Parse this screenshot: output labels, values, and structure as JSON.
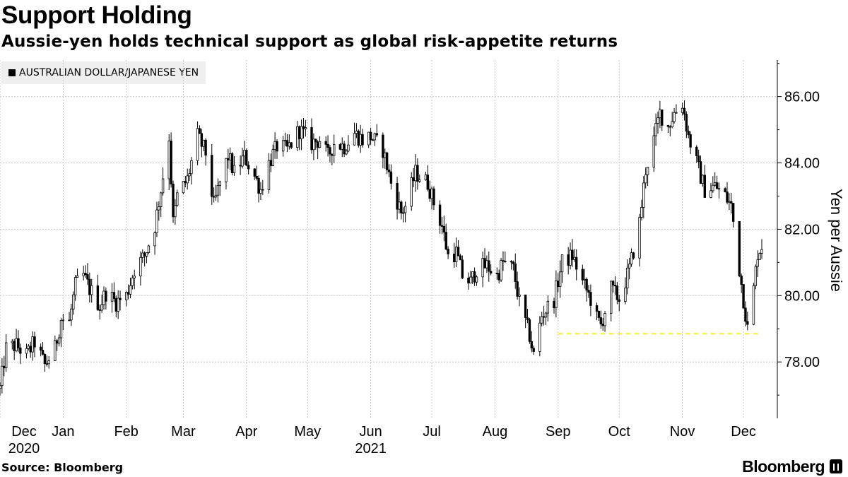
{
  "header": {
    "title": "Support Holding",
    "subtitle": "Aussie-yen holds technical support as global risk-appetite returns"
  },
  "legend": {
    "label": "AUSTRALIAN DOLLAR/JAPANESE YEN",
    "color": "#000000"
  },
  "footer": {
    "source": "Source: Bloomberg",
    "brand": "Bloomberg"
  },
  "chart_data": {
    "type": "candlestick",
    "ylabel": "Yen per Aussie",
    "ylim": [
      76.3,
      87.1
    ],
    "yticks": [
      78,
      80,
      82,
      84,
      86
    ],
    "ytick_labels": [
      "78.00",
      "80.00",
      "82.00",
      "84.00",
      "86.00"
    ],
    "x_range": [
      "2020-12-01",
      "2021-12-10"
    ],
    "x_ticks": [
      {
        "date": "2020-12-01",
        "label": "Dec",
        "year": "2020"
      },
      {
        "date": "2021-01-01",
        "label": "Jan"
      },
      {
        "date": "2021-02-01",
        "label": "Feb"
      },
      {
        "date": "2021-03-01",
        "label": "Mar"
      },
      {
        "date": "2021-04-01",
        "label": "Apr"
      },
      {
        "date": "2021-05-01",
        "label": "May"
      },
      {
        "date": "2021-06-01",
        "label": "Jun",
        "year": "2021"
      },
      {
        "date": "2021-07-01",
        "label": "Jul"
      },
      {
        "date": "2021-08-01",
        "label": "Aug"
      },
      {
        "date": "2021-09-01",
        "label": "Sep"
      },
      {
        "date": "2021-10-01",
        "label": "Oct"
      },
      {
        "date": "2021-11-01",
        "label": "Nov"
      },
      {
        "date": "2021-12-01",
        "label": "Dec"
      }
    ],
    "support_line": {
      "value": 78.85,
      "from": "2021-09-01",
      "to": "2021-12-10",
      "color": "#f2ef3a"
    },
    "grid": true,
    "series": [
      {
        "name": "AUSTRALIAN DOLLAR/JAPANESE YEN",
        "color": "#000000",
        "close_points": [
          [
            "2020-12-01",
            77.2
          ],
          [
            "2020-12-04",
            78.4
          ],
          [
            "2020-12-09",
            78.5
          ],
          [
            "2020-12-14",
            78.2
          ],
          [
            "2020-12-18",
            78.6
          ],
          [
            "2020-12-23",
            77.9
          ],
          [
            "2020-12-28",
            78.4
          ],
          [
            "2020-12-31",
            79.3
          ],
          [
            "2021-01-04",
            79.2
          ],
          [
            "2021-01-07",
            80.3
          ],
          [
            "2021-01-11",
            80.6
          ],
          [
            "2021-01-14",
            80.2
          ],
          [
            "2021-01-19",
            79.7
          ],
          [
            "2021-01-22",
            80.1
          ],
          [
            "2021-01-27",
            79.8
          ],
          [
            "2021-02-01",
            80.0
          ],
          [
            "2021-02-05",
            80.8
          ],
          [
            "2021-02-10",
            81.2
          ],
          [
            "2021-02-15",
            82.1
          ],
          [
            "2021-02-18",
            83.2
          ],
          [
            "2021-02-22",
            84.8
          ],
          [
            "2021-02-24",
            82.2
          ],
          [
            "2021-02-26",
            83.0
          ],
          [
            "2021-03-03",
            83.5
          ],
          [
            "2021-03-08",
            84.8
          ],
          [
            "2021-03-12",
            84.3
          ],
          [
            "2021-03-16",
            82.7
          ],
          [
            "2021-03-19",
            83.4
          ],
          [
            "2021-03-23",
            84.2
          ],
          [
            "2021-03-26",
            83.7
          ],
          [
            "2021-03-31",
            84.2
          ],
          [
            "2021-04-05",
            83.6
          ],
          [
            "2021-04-08",
            83.2
          ],
          [
            "2021-04-12",
            84.0
          ],
          [
            "2021-04-16",
            84.5
          ],
          [
            "2021-04-21",
            84.4
          ],
          [
            "2021-04-27",
            85.0
          ],
          [
            "2021-05-03",
            84.6
          ],
          [
            "2021-05-07",
            84.7
          ],
          [
            "2021-05-11",
            84.2
          ],
          [
            "2021-05-14",
            84.6
          ],
          [
            "2021-05-19",
            84.5
          ],
          [
            "2021-05-24",
            84.9
          ],
          [
            "2021-05-28",
            84.7
          ],
          [
            "2021-06-01",
            84.8
          ],
          [
            "2021-06-07",
            84.4
          ],
          [
            "2021-06-11",
            83.4
          ],
          [
            "2021-06-16",
            82.5
          ],
          [
            "2021-06-18",
            82.7
          ],
          [
            "2021-06-23",
            83.7
          ],
          [
            "2021-06-29",
            83.4
          ],
          [
            "2021-07-02",
            82.8
          ],
          [
            "2021-07-06",
            82.1
          ],
          [
            "2021-07-09",
            81.2
          ],
          [
            "2021-07-13",
            81.3
          ],
          [
            "2021-07-16",
            80.6
          ],
          [
            "2021-07-20",
            80.4
          ],
          [
            "2021-07-23",
            80.8
          ],
          [
            "2021-07-28",
            80.9
          ],
          [
            "2021-08-02",
            80.6
          ],
          [
            "2021-08-05",
            81.0
          ],
          [
            "2021-08-10",
            80.8
          ],
          [
            "2021-08-13",
            79.8
          ],
          [
            "2021-08-18",
            78.8
          ],
          [
            "2021-08-20",
            78.2
          ],
          [
            "2021-08-24",
            79.4
          ],
          [
            "2021-08-30",
            79.9
          ],
          [
            "2021-09-03",
            81.0
          ],
          [
            "2021-09-08",
            81.2
          ],
          [
            "2021-09-13",
            80.4
          ],
          [
            "2021-09-17",
            79.9
          ],
          [
            "2021-09-20",
            79.3
          ],
          [
            "2021-09-22",
            79.1
          ],
          [
            "2021-09-27",
            80.2
          ],
          [
            "2021-10-01",
            79.9
          ],
          [
            "2021-10-06",
            80.8
          ],
          [
            "2021-10-11",
            82.2
          ],
          [
            "2021-10-14",
            83.8
          ],
          [
            "2021-10-18",
            84.7
          ],
          [
            "2021-10-21",
            85.5
          ],
          [
            "2021-10-25",
            85.1
          ],
          [
            "2021-10-28",
            85.5
          ],
          [
            "2021-11-01",
            85.8
          ],
          [
            "2021-11-04",
            84.8
          ],
          [
            "2021-11-09",
            83.8
          ],
          [
            "2021-11-12",
            83.2
          ],
          [
            "2021-11-17",
            83.3
          ],
          [
            "2021-11-22",
            83.0
          ],
          [
            "2021-11-25",
            82.7
          ],
          [
            "2021-11-29",
            80.8
          ],
          [
            "2021-12-01",
            79.9
          ],
          [
            "2021-12-03",
            79.0
          ],
          [
            "2021-12-06",
            80.2
          ],
          [
            "2021-12-08",
            81.3
          ],
          [
            "2021-12-10",
            81.5
          ]
        ]
      }
    ]
  }
}
